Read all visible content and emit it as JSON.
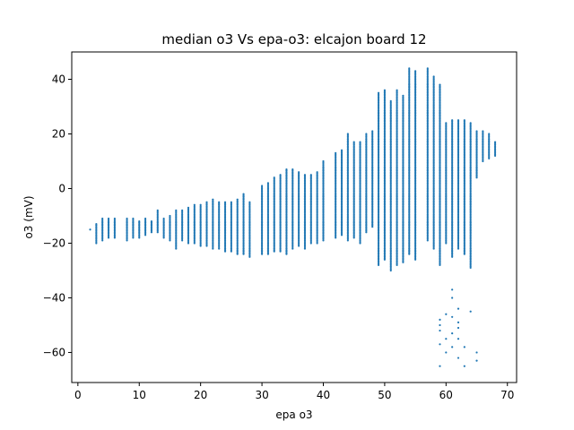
{
  "chart_data": {
    "type": "scatter",
    "title": "median o3 Vs epa-o3: elcajon board 12",
    "xlabel": "epa o3",
    "ylabel": "o3 (mV)",
    "xlim": [
      -1,
      71.5
    ],
    "ylim": [
      -71,
      50
    ],
    "xticks": [
      0,
      10,
      20,
      30,
      40,
      50,
      60,
      70
    ],
    "yticks": [
      -60,
      -40,
      -20,
      0,
      20,
      40
    ],
    "xtick_labels": [
      "0",
      "10",
      "20",
      "30",
      "40",
      "50",
      "60",
      "70"
    ],
    "ytick_labels": [
      "−60",
      "−40",
      "−20",
      "0",
      "20",
      "40"
    ],
    "grid": false,
    "legend": "none",
    "series_color": "#1f77b4",
    "columns": [
      {
        "x": 2,
        "ymin": -15,
        "ymax": -15
      },
      {
        "x": 3,
        "ymin": -20,
        "ymax": -13
      },
      {
        "x": 4,
        "ymin": -19,
        "ymax": -11
      },
      {
        "x": 5,
        "ymin": -18,
        "ymax": -11
      },
      {
        "x": 6,
        "ymin": -18,
        "ymax": -11
      },
      {
        "x": 8,
        "ymin": -19,
        "ymax": -11
      },
      {
        "x": 9,
        "ymin": -18,
        "ymax": -11
      },
      {
        "x": 10,
        "ymin": -18,
        "ymax": -12
      },
      {
        "x": 11,
        "ymin": -17,
        "ymax": -11
      },
      {
        "x": 12,
        "ymin": -16,
        "ymax": -12
      },
      {
        "x": 13,
        "ymin": -16,
        "ymax": -8
      },
      {
        "x": 14,
        "ymin": -18,
        "ymax": -11
      },
      {
        "x": 15,
        "ymin": -19,
        "ymax": -10
      },
      {
        "x": 16,
        "ymin": -22,
        "ymax": -8
      },
      {
        "x": 17,
        "ymin": -19,
        "ymax": -8
      },
      {
        "x": 18,
        "ymin": -20,
        "ymax": -7
      },
      {
        "x": 19,
        "ymin": -20,
        "ymax": -6
      },
      {
        "x": 20,
        "ymin": -21,
        "ymax": -6
      },
      {
        "x": 21,
        "ymin": -21,
        "ymax": -5
      },
      {
        "x": 22,
        "ymin": -22,
        "ymax": -4
      },
      {
        "x": 23,
        "ymin": -22,
        "ymax": -5
      },
      {
        "x": 24,
        "ymin": -23,
        "ymax": -5
      },
      {
        "x": 25,
        "ymin": -23,
        "ymax": -5
      },
      {
        "x": 26,
        "ymin": -24,
        "ymax": -4
      },
      {
        "x": 27,
        "ymin": -24,
        "ymax": -2
      },
      {
        "x": 28,
        "ymin": -25,
        "ymax": -5
      },
      {
        "x": 30,
        "ymin": -24,
        "ymax": 1
      },
      {
        "x": 31,
        "ymin": -24,
        "ymax": 2
      },
      {
        "x": 32,
        "ymin": -23,
        "ymax": 4
      },
      {
        "x": 33,
        "ymin": -23,
        "ymax": 5
      },
      {
        "x": 34,
        "ymin": -24,
        "ymax": 7
      },
      {
        "x": 35,
        "ymin": -22,
        "ymax": 7
      },
      {
        "x": 36,
        "ymin": -21,
        "ymax": 6
      },
      {
        "x": 37,
        "ymin": -22,
        "ymax": 5
      },
      {
        "x": 38,
        "ymin": -20,
        "ymax": 5
      },
      {
        "x": 39,
        "ymin": -20,
        "ymax": 6
      },
      {
        "x": 40,
        "ymin": -19,
        "ymax": 10
      },
      {
        "x": 42,
        "ymin": -18,
        "ymax": 13
      },
      {
        "x": 43,
        "ymin": -17,
        "ymax": 14
      },
      {
        "x": 44,
        "ymin": -19,
        "ymax": 20
      },
      {
        "x": 45,
        "ymin": -18,
        "ymax": 17
      },
      {
        "x": 46,
        "ymin": -20,
        "ymax": 17
      },
      {
        "x": 47,
        "ymin": -16,
        "ymax": 20
      },
      {
        "x": 48,
        "ymin": -14,
        "ymax": 21
      },
      {
        "x": 49,
        "ymin": -28,
        "ymax": 35
      },
      {
        "x": 50,
        "ymin": -26,
        "ymax": 36
      },
      {
        "x": 51,
        "ymin": -30,
        "ymax": 32
      },
      {
        "x": 52,
        "ymin": -28,
        "ymax": 36
      },
      {
        "x": 53,
        "ymin": -27,
        "ymax": 34
      },
      {
        "x": 54,
        "ymin": -24,
        "ymax": 44
      },
      {
        "x": 55,
        "ymin": -26,
        "ymax": 43
      },
      {
        "x": 57,
        "ymin": -19,
        "ymax": 44
      },
      {
        "x": 58,
        "ymin": -22,
        "ymax": 41
      },
      {
        "x": 59,
        "ymin": -28,
        "ymax": 38
      },
      {
        "x": 60,
        "ymin": -20,
        "ymax": 24
      },
      {
        "x": 61,
        "ymin": -25,
        "ymax": 25
      },
      {
        "x": 62,
        "ymin": -22,
        "ymax": 25
      },
      {
        "x": 63,
        "ymin": -24,
        "ymax": 25
      },
      {
        "x": 64,
        "ymin": -29,
        "ymax": 24
      },
      {
        "x": 65,
        "ymin": 4,
        "ymax": 21
      },
      {
        "x": 66,
        "ymin": 10,
        "ymax": 21
      },
      {
        "x": 67,
        "ymin": 11,
        "ymax": 20
      },
      {
        "x": 68,
        "ymin": 12,
        "ymax": 17
      }
    ],
    "outliers": [
      {
        "x": 59,
        "y": -65
      },
      {
        "x": 59,
        "y": -48
      },
      {
        "x": 59,
        "y": -50
      },
      {
        "x": 59,
        "y": -52
      },
      {
        "x": 59,
        "y": -57
      },
      {
        "x": 60,
        "y": -46
      },
      {
        "x": 60,
        "y": -55
      },
      {
        "x": 60,
        "y": -60
      },
      {
        "x": 61,
        "y": -37
      },
      {
        "x": 61,
        "y": -40
      },
      {
        "x": 61,
        "y": -47
      },
      {
        "x": 61,
        "y": -53
      },
      {
        "x": 61,
        "y": -58
      },
      {
        "x": 62,
        "y": -44
      },
      {
        "x": 62,
        "y": -49
      },
      {
        "x": 62,
        "y": -51
      },
      {
        "x": 62,
        "y": -55
      },
      {
        "x": 62,
        "y": -62
      },
      {
        "x": 63,
        "y": -58
      },
      {
        "x": 63,
        "y": -65
      },
      {
        "x": 64,
        "y": -45
      },
      {
        "x": 65,
        "y": -60
      },
      {
        "x": 65,
        "y": -63
      }
    ]
  }
}
